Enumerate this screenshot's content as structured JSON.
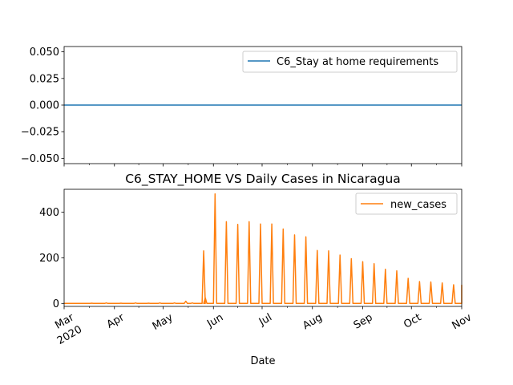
{
  "chart_data": [
    {
      "type": "line",
      "title": "",
      "xlabel": "",
      "ylabel": "",
      "ylim": [
        -0.055,
        0.055
      ],
      "yticks": [
        "0.050",
        "0.025",
        "0.000",
        "−0.025",
        "−0.050"
      ],
      "ytick_values": [
        0.05,
        0.025,
        0.0,
        -0.025,
        -0.05
      ],
      "legend_position": "upper right",
      "series": [
        {
          "name": "C6_Stay at home requirements",
          "color": "#1f77b4",
          "constant_value": 0
        }
      ]
    },
    {
      "type": "line",
      "title": "C6_STAY_HOME VS Daily Cases in Nicaragua",
      "xlabel": "Date",
      "ylabel": "",
      "ylim": [
        -13,
        500
      ],
      "yticks": [
        "0",
        "200",
        "400"
      ],
      "ytick_values": [
        0,
        200,
        400
      ],
      "legend_position": "upper right",
      "x_range": [
        "2020-03-01",
        "2020-11-01"
      ],
      "xticks": [
        {
          "date": "2020-03-01",
          "label": "Mar",
          "sublabel": "2020"
        },
        {
          "date": "2020-04-01",
          "label": "Apr",
          "sublabel": ""
        },
        {
          "date": "2020-05-01",
          "label": "May",
          "sublabel": ""
        },
        {
          "date": "2020-06-01",
          "label": "Jun",
          "sublabel": ""
        },
        {
          "date": "2020-07-01",
          "label": "Jul",
          "sublabel": ""
        },
        {
          "date": "2020-08-01",
          "label": "Aug",
          "sublabel": ""
        },
        {
          "date": "2020-09-01",
          "label": "Sep",
          "sublabel": ""
        },
        {
          "date": "2020-10-01",
          "label": "Oct",
          "sublabel": ""
        },
        {
          "date": "2020-11-01",
          "label": "Nov",
          "sublabel": ""
        }
      ],
      "series": [
        {
          "name": "new_cases",
          "color": "#ff7f0e",
          "baseline": 0,
          "points": [
            {
              "date": "2020-03-18",
              "value": 1
            },
            {
              "date": "2020-03-27",
              "value": 2
            },
            {
              "date": "2020-04-05",
              "value": 1
            },
            {
              "date": "2020-04-14",
              "value": 2
            },
            {
              "date": "2020-04-22",
              "value": 1
            },
            {
              "date": "2020-04-29",
              "value": 2
            },
            {
              "date": "2020-05-08",
              "value": 2
            },
            {
              "date": "2020-05-15",
              "value": 10
            },
            {
              "date": "2020-05-19",
              "value": 2
            },
            {
              "date": "2020-05-26",
              "value": 230
            },
            {
              "date": "2020-05-27",
              "value": 25
            },
            {
              "date": "2020-06-02",
              "value": 480
            },
            {
              "date": "2020-06-09",
              "value": 358
            },
            {
              "date": "2020-06-16",
              "value": 346
            },
            {
              "date": "2020-06-23",
              "value": 358
            },
            {
              "date": "2020-06-30",
              "value": 348
            },
            {
              "date": "2020-07-07",
              "value": 348
            },
            {
              "date": "2020-07-14",
              "value": 326
            },
            {
              "date": "2020-07-21",
              "value": 300
            },
            {
              "date": "2020-07-28",
              "value": 292
            },
            {
              "date": "2020-08-04",
              "value": 232
            },
            {
              "date": "2020-08-11",
              "value": 230
            },
            {
              "date": "2020-08-18",
              "value": 212
            },
            {
              "date": "2020-08-25",
              "value": 196
            },
            {
              "date": "2020-09-01",
              "value": 183
            },
            {
              "date": "2020-09-08",
              "value": 174
            },
            {
              "date": "2020-09-15",
              "value": 150
            },
            {
              "date": "2020-09-22",
              "value": 143
            },
            {
              "date": "2020-09-29",
              "value": 110
            },
            {
              "date": "2020-10-06",
              "value": 96
            },
            {
              "date": "2020-10-13",
              "value": 94
            },
            {
              "date": "2020-10-20",
              "value": 90
            },
            {
              "date": "2020-10-27",
              "value": 82
            },
            {
              "date": "2020-11-03",
              "value": 80
            }
          ]
        }
      ]
    }
  ]
}
